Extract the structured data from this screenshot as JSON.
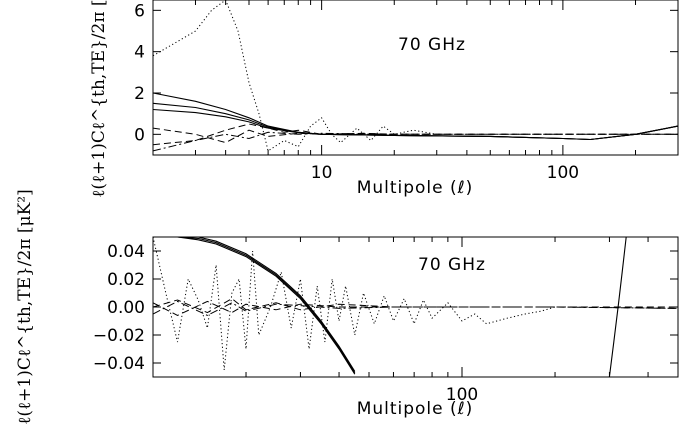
{
  "chart_data": [
    {
      "type": "line",
      "annotation": "70 GHz",
      "xlabel": "Multipole (ℓ)",
      "ylabel": "ℓ(ℓ+1)Cℓ^{th,TE}/2π [μK²]",
      "xscale": "log",
      "xlim": [
        2,
        300
      ],
      "ylim": [
        -1,
        6.5
      ],
      "x_ticks": [
        10,
        100
      ],
      "y_ticks": [
        0,
        2,
        4,
        6
      ],
      "series": [
        {
          "style": "solid",
          "x": [
            2,
            3,
            4,
            5,
            6,
            8,
            10,
            20,
            50,
            100,
            130,
            200,
            300
          ],
          "y": [
            2.0,
            1.6,
            1.2,
            0.8,
            0.4,
            0.1,
            0.0,
            -0.05,
            -0.1,
            -0.2,
            -0.25,
            0.0,
            0.4
          ]
        },
        {
          "style": "solid",
          "x": [
            2,
            3,
            4,
            5,
            6,
            8,
            10,
            20,
            50,
            100,
            130,
            200,
            300
          ],
          "y": [
            1.5,
            1.3,
            1.0,
            0.7,
            0.35,
            0.1,
            0.0,
            -0.05,
            -0.1,
            -0.2,
            -0.25,
            0.0,
            0.4
          ]
        },
        {
          "style": "solid",
          "x": [
            2,
            3,
            4,
            5,
            6,
            8,
            10,
            20,
            50,
            100,
            130,
            200,
            300
          ],
          "y": [
            1.2,
            1.05,
            0.85,
            0.6,
            0.3,
            0.08,
            0.0,
            -0.05,
            -0.1,
            -0.2,
            -0.25,
            0.0,
            0.4
          ]
        },
        {
          "style": "dotted",
          "x": [
            2,
            3,
            3.5,
            4,
            4.5,
            5,
            5.5,
            6,
            7,
            8,
            9,
            10,
            11,
            12,
            14,
            16,
            18,
            20,
            24,
            30
          ],
          "y": [
            3.8,
            5.0,
            6.0,
            6.5,
            5.0,
            2.5,
            1.0,
            -0.8,
            -0.3,
            -0.6,
            0.4,
            0.8,
            0.0,
            -0.4,
            0.3,
            -0.3,
            0.4,
            0.0,
            0.2,
            0.0
          ]
        },
        {
          "style": "dashed",
          "x": [
            2,
            3,
            4,
            5,
            6,
            7,
            8,
            10,
            15,
            20,
            300
          ],
          "y": [
            -0.5,
            -0.3,
            0.2,
            0.5,
            0.3,
            0.1,
            0.2,
            0.0,
            0.05,
            0.0,
            0.0
          ]
        },
        {
          "style": "dash-dot",
          "x": [
            2,
            3,
            4,
            5,
            6,
            8,
            10,
            20,
            300
          ],
          "y": [
            -0.8,
            -0.3,
            0.0,
            -0.2,
            0.1,
            0.0,
            0.05,
            0.0,
            0.0
          ]
        },
        {
          "style": "dashed",
          "x": [
            2,
            3,
            4,
            5,
            6,
            8,
            10,
            300
          ],
          "y": [
            0.3,
            0.0,
            -0.4,
            0.2,
            -0.1,
            0.05,
            0.0,
            0.0
          ]
        }
      ]
    },
    {
      "type": "line",
      "annotation": "70 GHz",
      "xlabel": "Multipole (ℓ)",
      "ylabel": "ℓ(ℓ+1)Cℓ^{th,TE}/2π [μK²]",
      "xscale": "log",
      "xlim": [
        10,
        500
      ],
      "ylim": [
        -0.05,
        0.05
      ],
      "x_ticks": [
        100
      ],
      "y_ticks": [
        -0.04,
        -0.02,
        0.0,
        0.02,
        0.04
      ],
      "series": [
        {
          "style": "solid",
          "x": [
            12,
            14,
            16,
            20,
            25,
            30,
            35,
            40,
            45
          ],
          "y": [
            0.05,
            0.048,
            0.045,
            0.036,
            0.022,
            0.006,
            -0.012,
            -0.03,
            -0.048
          ]
        },
        {
          "style": "solid",
          "x": [
            12,
            14,
            16,
            20,
            25,
            30,
            35,
            40,
            45
          ],
          "y": [
            0.05,
            0.049,
            0.046,
            0.037,
            0.023,
            0.007,
            -0.011,
            -0.029,
            -0.047
          ]
        },
        {
          "style": "solid",
          "x": [
            12,
            14,
            16,
            20,
            25,
            30,
            35,
            40,
            45
          ],
          "y": [
            0.05,
            0.05,
            0.047,
            0.038,
            0.024,
            0.008,
            -0.01,
            -0.028,
            -0.046
          ]
        },
        {
          "style": "solid",
          "x": [
            300,
            310,
            320,
            330,
            340
          ],
          "y": [
            -0.05,
            -0.025,
            0.0,
            0.025,
            0.05
          ]
        },
        {
          "style": "dotted",
          "x": [
            10,
            11,
            12,
            13,
            14,
            15,
            16,
            17,
            18,
            19,
            20,
            21,
            22,
            24,
            26,
            28,
            30,
            32,
            34,
            36,
            38,
            40,
            42,
            45,
            48,
            52,
            56,
            60,
            65,
            70,
            75,
            80,
            90,
            100,
            110,
            120,
            140,
            160,
            180,
            200,
            240
          ],
          "y": [
            0.05,
            0.01,
            -0.025,
            0.02,
            0.005,
            -0.015,
            0.03,
            -0.045,
            0.01,
            0.02,
            -0.03,
            0.04,
            -0.02,
            0.0,
            0.025,
            -0.015,
            0.02,
            -0.03,
            0.015,
            -0.025,
            0.02,
            -0.01,
            0.015,
            -0.02,
            0.01,
            -0.012,
            0.008,
            -0.01,
            0.006,
            -0.012,
            0.005,
            -0.008,
            0.003,
            -0.01,
            -0.005,
            -0.012,
            -0.008,
            -0.005,
            -0.003,
            0.0,
            0.0
          ]
        },
        {
          "style": "dashed",
          "x": [
            10,
            12,
            15,
            18,
            20,
            25,
            30,
            40,
            60,
            100,
            200,
            500
          ],
          "y": [
            0.0,
            0.005,
            -0.004,
            0.006,
            -0.002,
            0.003,
            -0.002,
            0.002,
            0.0,
            0.0,
            0.0,
            -0.001
          ]
        },
        {
          "style": "dash-dot",
          "x": [
            10,
            12,
            15,
            18,
            20,
            25,
            30,
            40,
            60,
            100,
            200,
            500
          ],
          "y": [
            -0.005,
            0.004,
            -0.006,
            0.003,
            -0.003,
            0.002,
            0.001,
            -0.001,
            0.0,
            0.0,
            0.0,
            -0.001
          ]
        },
        {
          "style": "dashed",
          "x": [
            10,
            12,
            15,
            18,
            20,
            25,
            30,
            40,
            60,
            100,
            200,
            500
          ],
          "y": [
            0.003,
            -0.006,
            0.004,
            -0.004,
            0.002,
            -0.002,
            0.002,
            0.0,
            0.0,
            0.0,
            0.0,
            0.0
          ]
        }
      ]
    }
  ]
}
